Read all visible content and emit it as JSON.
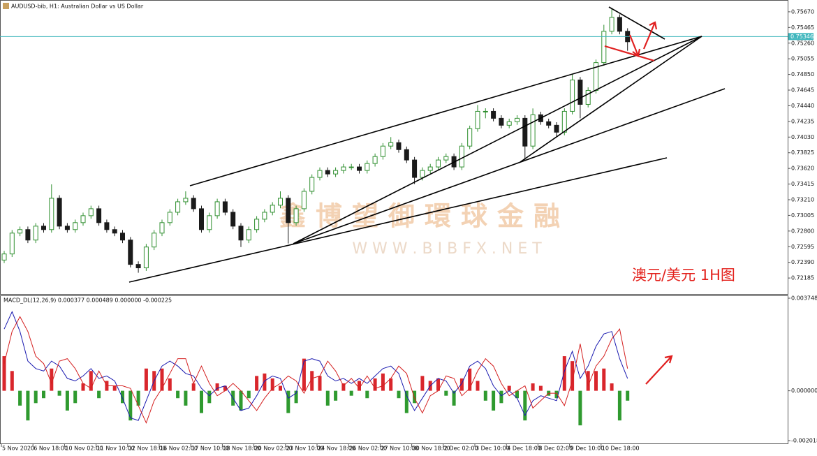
{
  "chart_data": [
    {
      "type": "candlestick",
      "title": "AUDUSD-bib, H1:  Australian Dollar vs US Dollar",
      "annotation": "澳元/美元 1H图",
      "watermark": "鑫博望御環球金融",
      "watermark_url": "W W W . B I B F X . N E T",
      "x_labels": [
        "5 Nov 2020",
        "6 Nov 18:00",
        "10 Nov 02:00",
        "11 Nov 10:00",
        "12 Nov 18:00",
        "16 Nov 02:00",
        "17 Nov 10:00",
        "18 Nov 18:00",
        "20 Nov 02:00",
        "23 Nov 10:00",
        "24 Nov 18:00",
        "26 Nov 02:00",
        "27 Nov 10:00",
        "30 Nov 18:00",
        "2 Dec 02:00",
        "3 Dec 10:00",
        "4 Dec 18:00",
        "8 Dec 02:00",
        "9 Dec 10:00",
        "10 Dec 18:00"
      ],
      "open": [
        0.7242,
        0.725,
        0.72773,
        0.72819,
        0.72682,
        0.72864,
        0.72819,
        0.73229,
        0.72864,
        0.72819,
        0.7291,
        0.73001,
        0.73092,
        0.7291,
        0.72819,
        0.72773,
        0.72682,
        0.72363,
        0.72318,
        0.72591,
        0.72773,
        0.7291,
        0.73046,
        0.73183,
        0.73229,
        0.73092,
        0.72819,
        0.73001,
        0.73183,
        0.73046,
        0.72864,
        0.72682,
        0.72819,
        0.72955,
        0.73046,
        0.73138,
        0.73229,
        0.7291,
        0.73092,
        0.7332,
        0.73502,
        0.73593,
        0.73547,
        0.73593,
        0.73639,
        0.73639,
        0.73593,
        0.73684,
        0.73775,
        0.73912,
        0.73957,
        0.73866,
        0.7373,
        0.73502,
        0.73593,
        0.73639,
        0.7373,
        0.73775,
        0.73639,
        0.73912,
        0.7414,
        0.74367,
        0.74367,
        0.74276,
        0.74185,
        0.74231,
        0.74276,
        0.73912,
        0.74322,
        0.74231,
        0.74185,
        0.74094,
        0.74367,
        0.74777,
        0.74458,
        0.74641,
        0.75005,
        0.75415,
        0.75597,
        0.75415
      ],
      "high": [
        0.7254,
        0.72813,
        0.72859,
        0.72859,
        0.72904,
        0.72904,
        0.73411,
        0.73269,
        0.72904,
        0.7295,
        0.73041,
        0.73132,
        0.73132,
        0.7295,
        0.72859,
        0.72813,
        0.72722,
        0.72403,
        0.72631,
        0.72813,
        0.7295,
        0.73086,
        0.73223,
        0.7332,
        0.73269,
        0.73132,
        0.73041,
        0.73223,
        0.73223,
        0.73086,
        0.72904,
        0.72859,
        0.72995,
        0.73086,
        0.73178,
        0.7332,
        0.73269,
        0.73132,
        0.7336,
        0.73542,
        0.73633,
        0.73633,
        0.73633,
        0.73679,
        0.73679,
        0.73679,
        0.73724,
        0.73815,
        0.73952,
        0.7403,
        0.73997,
        0.73906,
        0.7377,
        0.73633,
        0.73679,
        0.7377,
        0.73815,
        0.73815,
        0.73952,
        0.7418,
        0.7445,
        0.74407,
        0.74407,
        0.74316,
        0.74271,
        0.74316,
        0.74316,
        0.74405,
        0.74362,
        0.74271,
        0.74225,
        0.74407,
        0.7485,
        0.74817,
        0.74681,
        0.75045,
        0.755,
        0.7572,
        0.75637,
        0.75455
      ],
      "low": [
        0.7238,
        0.7246,
        0.72733,
        0.72642,
        0.72642,
        0.72779,
        0.72779,
        0.72824,
        0.72779,
        0.72779,
        0.7287,
        0.72961,
        0.7287,
        0.72779,
        0.72733,
        0.72642,
        0.72323,
        0.72254,
        0.72278,
        0.72551,
        0.72733,
        0.7287,
        0.73006,
        0.73143,
        0.73052,
        0.72779,
        0.72779,
        0.72961,
        0.73006,
        0.72824,
        0.72591,
        0.72642,
        0.72779,
        0.72915,
        0.73006,
        0.73098,
        0.72637,
        0.7287,
        0.73052,
        0.7328,
        0.73462,
        0.73507,
        0.73507,
        0.73553,
        0.73599,
        0.73553,
        0.73553,
        0.73644,
        0.73735,
        0.73872,
        0.73826,
        0.7369,
        0.73415,
        0.73462,
        0.73553,
        0.73599,
        0.7369,
        0.73599,
        0.73599,
        0.73872,
        0.741,
        0.74276,
        0.74236,
        0.74145,
        0.74145,
        0.74191,
        0.7373,
        0.73872,
        0.74191,
        0.74145,
        0.7403,
        0.74054,
        0.74327,
        0.74276,
        0.74418,
        0.74601,
        0.74965,
        0.75375,
        0.75375,
        0.7516
      ],
      "close": [
        0.725,
        0.72773,
        0.72819,
        0.72682,
        0.72864,
        0.72819,
        0.73229,
        0.72864,
        0.72819,
        0.7291,
        0.73001,
        0.73092,
        0.7291,
        0.72819,
        0.72773,
        0.72682,
        0.72363,
        0.72318,
        0.72591,
        0.72773,
        0.7291,
        0.73046,
        0.73183,
        0.73229,
        0.73092,
        0.72819,
        0.73001,
        0.73183,
        0.73046,
        0.72864,
        0.72682,
        0.72819,
        0.72955,
        0.73046,
        0.73138,
        0.73229,
        0.7291,
        0.73092,
        0.7332,
        0.73502,
        0.73593,
        0.73547,
        0.73593,
        0.73639,
        0.73639,
        0.73593,
        0.73684,
        0.73775,
        0.73912,
        0.73957,
        0.73866,
        0.7373,
        0.73502,
        0.73593,
        0.73639,
        0.7373,
        0.73775,
        0.73639,
        0.73912,
        0.7414,
        0.74367,
        0.74367,
        0.74276,
        0.74185,
        0.74231,
        0.74276,
        0.73912,
        0.74322,
        0.74231,
        0.74185,
        0.74094,
        0.74367,
        0.74777,
        0.74458,
        0.74641,
        0.75005,
        0.75415,
        0.75597,
        0.75415,
        0.75278
      ],
      "up_color": "#2f8f2f",
      "down_color": "#1a1a1a",
      "ylim": [
        0.71985,
        0.75788
      ],
      "yticks": [
        {
          "value": 0.7567,
          "label": "0.75670"
        },
        0.75465,
        {
          "value": 0.7526,
          "label": "0.75260"
        },
        0.75055,
        {
          "value": 0.7485,
          "label": "0.74850"
        },
        0.74645,
        {
          "value": 0.7444,
          "label": "0.74440"
        },
        0.74235,
        {
          "value": 0.7403,
          "label": "0.74030"
        },
        0.73825,
        {
          "value": 0.7362,
          "label": "0.73620"
        },
        0.73415,
        {
          "value": 0.7321,
          "label": "0.73210"
        },
        0.73005,
        {
          "value": 0.728,
          "label": "0.72800"
        },
        0.72595,
        {
          "value": 0.7239,
          "label": "0.72390"
        },
        0.72185
      ],
      "current_price": 0.75346,
      "current_price_color": "#3fb6bd"
    },
    {
      "type": "macd",
      "title": "MACD_DL(12,26,9) 0.000377 0.000489 0.000000 -0.000225",
      "histogram": [
        0.0014,
        0.0008,
        -0.0006,
        -0.0012,
        -0.0005,
        -0.0003,
        0.0009,
        -0.0002,
        -0.0008,
        -0.0005,
        0.0003,
        0.0008,
        -0.0003,
        0.0004,
        0.0002,
        -0.0005,
        -0.0012,
        -0.0006,
        0.0009,
        0.0008,
        0.0009,
        0.0005,
        -0.0003,
        -0.0006,
        0.0003,
        -0.0009,
        -0.0005,
        0.0003,
        0.0002,
        -0.0006,
        -0.0008,
        -0.0003,
        0.0006,
        0.0007,
        0.0005,
        0.0002,
        -0.0009,
        -0.0005,
        0.0013,
        0.0008,
        0.0006,
        -0.0006,
        -0.0004,
        0.0003,
        -0.0002,
        0.0004,
        -0.0003,
        0.0005,
        0.0007,
        0.0005,
        -0.0003,
        -0.0009,
        -0.0005,
        0.0006,
        0.0004,
        0.0005,
        -0.0002,
        -0.0006,
        0.0005,
        0.0009,
        0.0004,
        -0.0004,
        -0.0008,
        -0.0005,
        0.0002,
        -0.0003,
        -0.0012,
        0.0003,
        0.0002,
        -0.0002,
        -0.0003,
        0.0014,
        0.0012,
        -0.0014,
        0.0008,
        0.0008,
        0.0009,
        0.0003,
        -0.0012,
        -0.0004
      ],
      "positive_color": "#d9262c",
      "negative_color": "#2f9a2f",
      "macd": [
        0.0025,
        0.0032,
        0.0024,
        0.0012,
        0.0009,
        0.0008,
        0.0012,
        0.001,
        0.0005,
        0.0004,
        0.0006,
        0.0009,
        0.0005,
        0.0006,
        0.0004,
        -0.0003,
        -0.0011,
        -0.0012,
        -0.0004,
        0.0004,
        0.001,
        0.0012,
        0.001,
        0.0007,
        0.0006,
        0.0001,
        -0.0002,
        0.0001,
        0.0002,
        -0.0003,
        -0.0008,
        -0.0007,
        -0.0002,
        0.0004,
        0.0006,
        0.0005,
        -0.0003,
        -0.0001,
        0.0012,
        0.0013,
        0.0012,
        0.0006,
        0.0004,
        0.0005,
        0.0003,
        0.0005,
        0.0003,
        0.0006,
        0.0009,
        0.001,
        0.0007,
        -0.0002,
        -0.0008,
        -0.0003,
        0.0002,
        0.0005,
        0.0004,
        -0.0001,
        0.0003,
        0.001,
        0.0012,
        0.0009,
        0.0002,
        -0.0002,
        0.0,
        -0.0003,
        -0.001,
        -0.0004,
        -0.0002,
        -0.0003,
        -0.0004,
        0.0008,
        0.0016,
        0.0005,
        0.001,
        0.0018,
        0.0023,
        0.0024,
        0.0013,
        0.0005
      ],
      "macd_color": "#1b1bb0",
      "signal": [
        0.0011,
        0.0024,
        0.003,
        0.0024,
        0.0014,
        0.0011,
        0.0003,
        0.0012,
        0.0013,
        0.0009,
        0.0003,
        0.0001,
        0.0008,
        0.0002,
        0.0002,
        0.0002,
        0.0001,
        -0.0006,
        -0.0013,
        -0.0004,
        0.0001,
        0.0007,
        0.0013,
        0.0013,
        0.0003,
        0.001,
        0.0003,
        -0.0002,
        0.0,
        0.0003,
        0.0,
        -0.0004,
        -0.0008,
        -0.0003,
        0.0001,
        0.0003,
        0.0006,
        0.0004,
        -0.0001,
        0.0005,
        0.0006,
        0.0012,
        0.0008,
        0.0002,
        0.0005,
        0.0001,
        0.0006,
        0.0001,
        0.0002,
        0.0005,
        0.001,
        0.0007,
        -0.0003,
        -0.0009,
        -0.0002,
        0.0,
        0.0006,
        0.0005,
        -0.0002,
        0.0001,
        0.0008,
        0.0013,
        0.001,
        0.0003,
        -0.0002,
        0.0,
        0.0002,
        -0.0007,
        -0.0004,
        -0.0001,
        -0.0001,
        -0.0006,
        0.0004,
        0.0019,
        0.0002,
        0.001,
        0.0014,
        0.0021,
        0.0025,
        0.0009
      ],
      "signal_color": "#d41f1f",
      "ylim": [
        -0.002018,
        0.003748
      ],
      "yticks": [
        0.003748,
        {
          "value": 0,
          "label": "0.000000"
        },
        -0.002018
      ]
    }
  ]
}
